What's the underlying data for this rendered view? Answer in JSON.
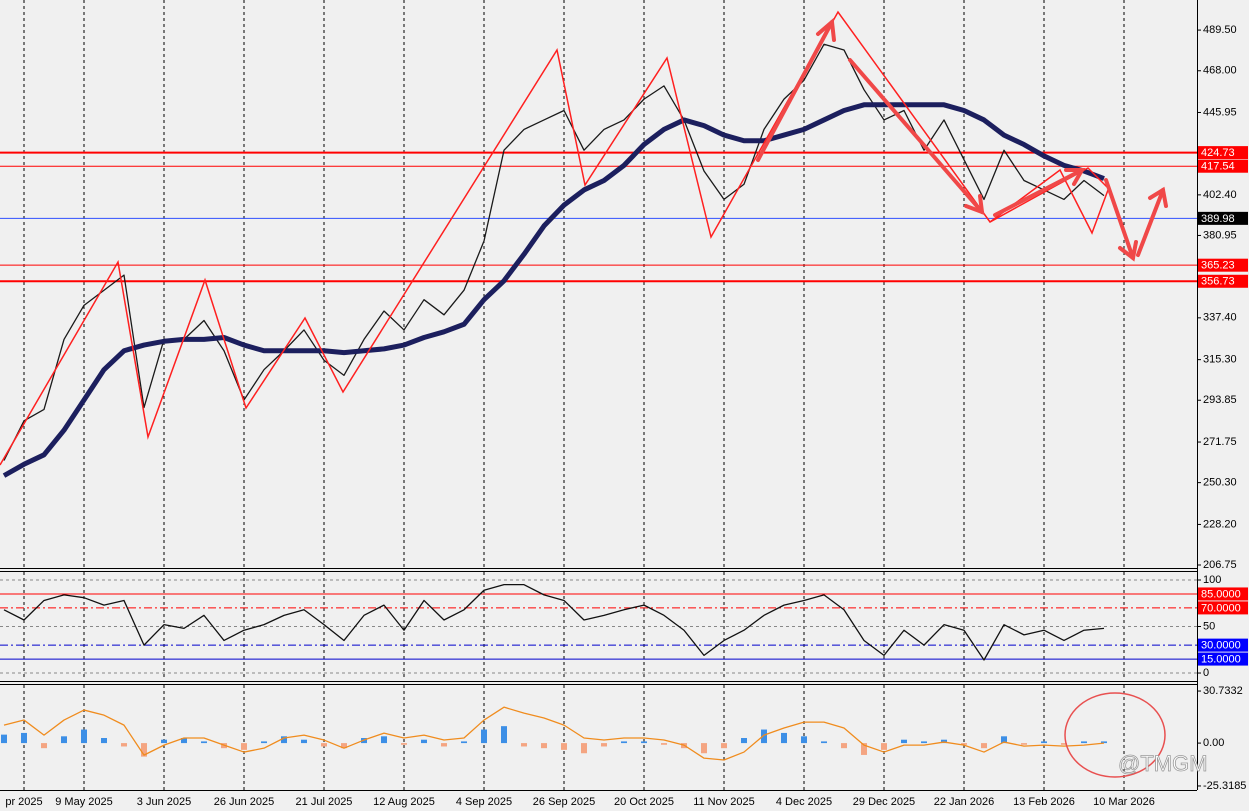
{
  "chart_data": [
    {
      "type": "line",
      "categories": [
        null,
        "pr 2025",
        null,
        null,
        "9 May 2025",
        null,
        null,
        null,
        "3 Jun 2025",
        null,
        null,
        null,
        "26 Jun 2025",
        null,
        null,
        null,
        "21 Jul 2025",
        null,
        null,
        null,
        "12 Aug 2025",
        null,
        null,
        null,
        "4 Sep 2025",
        null,
        null,
        null,
        "26 Sep 2025",
        null,
        null,
        null,
        "20 Oct 2025",
        null,
        null,
        null,
        "11 Nov 2025",
        null,
        null,
        null,
        "4 Dec 2025",
        null,
        null,
        null,
        "29 Dec 2025",
        null,
        null,
        null,
        "22 Jan 2026",
        null,
        null,
        null,
        "13 Feb 2026",
        null,
        null,
        null,
        "10 Mar 2026"
      ],
      "series": [
        {
          "color": "#1a1a1a",
          "values": [
            262,
            283,
            289,
            326,
            344,
            352,
            360,
            290,
            326,
            326,
            336,
            320,
            294,
            310,
            320,
            331,
            315,
            307,
            326,
            341,
            331,
            347,
            339,
            352,
            378,
            426,
            437,
            442,
            447,
            426,
            437,
            442,
            453,
            460,
            442,
            415,
            400,
            408,
            437,
            453,
            463,
            482,
            479,
            458,
            442,
            447,
            426,
            442,
            421,
            400,
            426,
            410,
            405,
            400,
            410,
            402,
            null
          ]
        },
        {
          "color": "#1c1f5e",
          "values": [
            254,
            260,
            265,
            278,
            294,
            310,
            320,
            323,
            325,
            326,
            326,
            327,
            323,
            320,
            320,
            320,
            320,
            319,
            320,
            321,
            323,
            327,
            330,
            334,
            347,
            357,
            371,
            386,
            397,
            405,
            410,
            418,
            429,
            437,
            442,
            439,
            434,
            431,
            431,
            434,
            437,
            442,
            447,
            450,
            450,
            450,
            450,
            450,
            447,
            442,
            434,
            429,
            423,
            418,
            415,
            411,
            null
          ]
        }
      ],
      "ylim": [
        205.7,
        505.4
      ],
      "yticks": [
        {
          "value": 489.5,
          "label": "489.50"
        },
        {
          "value": 468,
          "label": "468.00"
        },
        445.95,
        {
          "value": 402.4,
          "label": "402.40"
        },
        380.95,
        {
          "value": 337.4,
          "label": "337.40"
        },
        {
          "value": 315.3,
          "label": "315.30"
        },
        293.85,
        271.75,
        {
          "value": 250.3,
          "label": "250.30"
        },
        {
          "value": 228.2,
          "label": "228.20"
        },
        206.75
      ],
      "levels": [
        424.73,
        417.54,
        389.98,
        365.23,
        356.73
      ],
      "level_colors": [
        "#ff0000",
        "#ff0000",
        "#3050ff",
        "#ff0000",
        "#ff0000"
      ],
      "level_label_colors": [
        "#ff0000",
        "#ff0000",
        "#000000",
        "#ff0000",
        "#ff0000"
      ],
      "level_widths": [
        2,
        1,
        1,
        1,
        2
      ],
      "level_dash": [
        false,
        false,
        false,
        false,
        false
      ]
    },
    {
      "type": "line",
      "series": [
        {
          "color": "#111111",
          "values": [
            68,
            57,
            78,
            84,
            81,
            73,
            78,
            30,
            52,
            48,
            62,
            35,
            46,
            52,
            62,
            68,
            52,
            35,
            62,
            73,
            46,
            78,
            57,
            68,
            89,
            95,
            95,
            84,
            78,
            57,
            62,
            68,
            73,
            62,
            46,
            19,
            35,
            46,
            62,
            73,
            78,
            84,
            68,
            35,
            19,
            46,
            30,
            52,
            46,
            14,
            52,
            41,
            46,
            35,
            46,
            48,
            null
          ]
        }
      ],
      "ylim": [
        -7.5,
        108.6
      ],
      "yticks": [
        100,
        50,
        0
      ],
      "grid": true,
      "levels": [
        {
          "value": 85,
          "label": "85.0000"
        },
        {
          "value": 70,
          "label": "70.0000"
        },
        {
          "value": 30,
          "label": "30.0000"
        },
        {
          "value": 15,
          "label": "15.0000"
        }
      ],
      "level_colors": [
        "#ff0000",
        "#ff0000",
        "#0000cc",
        "#0000cc"
      ],
      "level_label_colors": [
        "#ff0000",
        "#ff0000",
        "#0000ff",
        "#0000ff"
      ],
      "level_widths": [
        1,
        1,
        1,
        1
      ],
      "level_dash": [
        false,
        true,
        true,
        false
      ]
    },
    {
      "type": "bar",
      "series": [
        {
          "type": "bar",
          "color": "#3d8fe6",
          "negative_color": "#f4a582",
          "values": [
            5,
            6,
            -3,
            4,
            8,
            3,
            -2,
            -8,
            2,
            3,
            1,
            -3,
            -4,
            1,
            4,
            2,
            -2,
            -3,
            3,
            4,
            -1,
            2,
            -2,
            1,
            8,
            10,
            -2,
            -3,
            -4,
            -6,
            -2,
            1,
            1,
            -1,
            -3,
            -6,
            -3,
            3,
            8,
            6,
            4,
            1,
            -3,
            -7,
            -4,
            2,
            1,
            2,
            -1,
            -3,
            4,
            -1,
            1,
            -1,
            1,
            1,
            null
          ]
        },
        {
          "type": "line",
          "color": "#f08c1e",
          "values": [
            10.6,
            13.6,
            4.7,
            13.6,
            19.5,
            16.5,
            10.6,
            -7.1,
            -1.2,
            3,
            3,
            -1.2,
            -5.3,
            -3,
            3,
            4.7,
            1.8,
            -3,
            1.8,
            5.9,
            3,
            4.7,
            1.8,
            3,
            13.6,
            21.2,
            17.7,
            14.8,
            10.6,
            3,
            1.8,
            3,
            3,
            1.8,
            -1.2,
            -8.9,
            -10,
            -5.3,
            4.7,
            8.9,
            12.4,
            12.4,
            8.9,
            -1.2,
            -5.3,
            -1.2,
            -1.2,
            0.6,
            -1.2,
            -5.3,
            0.6,
            -1.8,
            -1.2,
            -1.8,
            -1.2,
            0,
            null
          ]
        }
      ],
      "ylim": [
        -27.7,
        34.3
      ],
      "yticks": [
        30.7332,
        {
          "value": 0,
          "label": "0.00"
        },
        -25.3185
      ],
      "annotation": "@TMGM"
    }
  ]
}
